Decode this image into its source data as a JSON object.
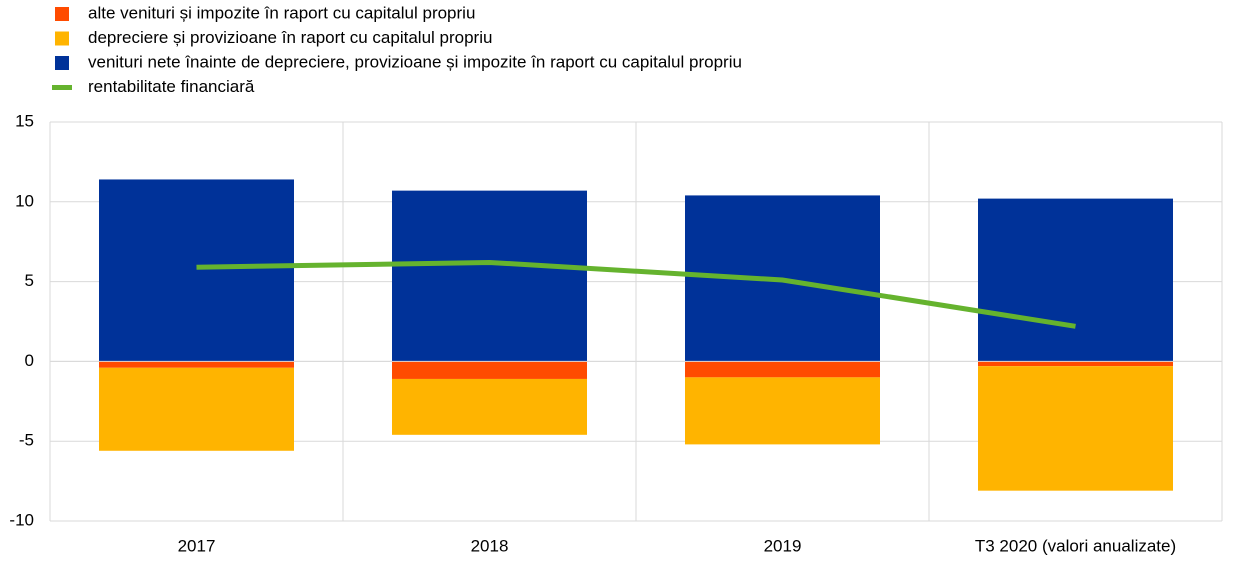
{
  "chart_data": {
    "type": "bar",
    "categories": [
      "2017",
      "2018",
      "2019",
      "T3 2020 (valori anualizate)"
    ],
    "series": [
      {
        "name": "alte venituri și impozite în raport cu capitalul propriu",
        "color": "#ff4b00",
        "values": [
          -0.4,
          -1.1,
          -1.0,
          -0.3
        ]
      },
      {
        "name": "depreciere și provizioane în raport cu capitalul propriu",
        "color": "#ffb400",
        "values": [
          -5.2,
          -3.5,
          -4.2,
          -7.8
        ]
      },
      {
        "name": "venituri nete înainte de depreciere, provizioane și impozite în raport cu capitalul propriu",
        "color": "#003299",
        "values": [
          11.4,
          10.7,
          10.4,
          10.2
        ]
      },
      {
        "name": "rentabilitate financiară",
        "color": "#65b32e",
        "type": "line",
        "values": [
          5.9,
          6.2,
          5.1,
          2.2
        ]
      }
    ],
    "ylim": [
      -10,
      15
    ],
    "yticks": [
      -10,
      -5,
      0,
      5,
      10,
      15
    ],
    "grid": true,
    "legend": "top-left",
    "stacked": true
  }
}
